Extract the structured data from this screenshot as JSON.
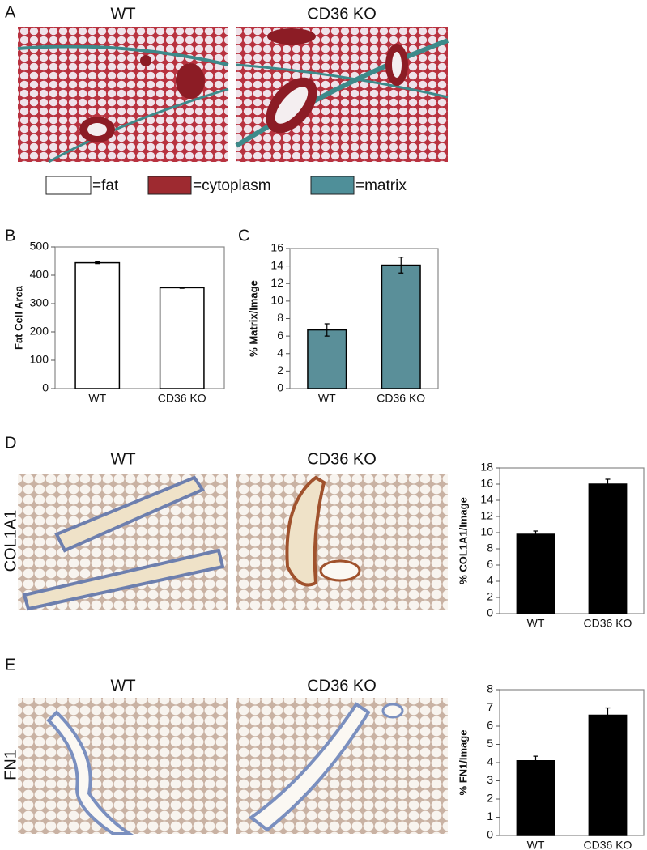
{
  "panel_labels": [
    "A",
    "B",
    "C",
    "D",
    "E"
  ],
  "panel_a": {
    "columns": [
      "WT",
      "CD36 KO"
    ],
    "legend": [
      "=fat",
      "=cytoplasm",
      "=matrix"
    ]
  },
  "panel_d": {
    "columns": [
      "WT",
      "CD36 KO"
    ],
    "stain": "COL1A1"
  },
  "panel_e": {
    "columns": [
      "WT",
      "CD36 KO"
    ],
    "stain": "FN1"
  },
  "chart_data": [
    {
      "type": "bar",
      "y_label": "Fat Cell Area",
      "categories": [
        "WT",
        "CD36 KO"
      ],
      "values": [
        444,
        356
      ],
      "errors": [
        3,
        2
      ],
      "color": "#ffffff",
      "ylim": [
        0,
        500
      ],
      "yticks": [
        0,
        100,
        200,
        300,
        400,
        500
      ]
    },
    {
      "type": "bar",
      "y_label": "% Matrix/Image",
      "categories": [
        "WT",
        "CD36 KO"
      ],
      "values": [
        6.7,
        14.1
      ],
      "errors": [
        0.7,
        0.9
      ],
      "color": "#5a8f99",
      "ylim": [
        0,
        16
      ],
      "yticks": [
        0,
        2,
        4,
        6,
        8,
        10,
        12,
        14,
        16
      ]
    },
    {
      "type": "bar",
      "y_label": "% COL1A1/Image",
      "categories": [
        "WT",
        "CD36 KO"
      ],
      "values": [
        9.8,
        16.0
      ],
      "errors": [
        0.4,
        0.6
      ],
      "color": "#000000",
      "ylim": [
        0,
        18
      ],
      "yticks": [
        0,
        2,
        4,
        6,
        8,
        10,
        12,
        14,
        16,
        18
      ]
    },
    {
      "type": "bar",
      "y_label": "% FN1/Image",
      "categories": [
        "WT",
        "CD36 KO"
      ],
      "values": [
        4.1,
        6.6
      ],
      "errors": [
        0.25,
        0.4
      ],
      "color": "#000000",
      "ylim": [
        0,
        8
      ],
      "yticks": [
        0,
        1,
        2,
        3,
        4,
        5,
        6,
        7,
        8
      ]
    }
  ]
}
